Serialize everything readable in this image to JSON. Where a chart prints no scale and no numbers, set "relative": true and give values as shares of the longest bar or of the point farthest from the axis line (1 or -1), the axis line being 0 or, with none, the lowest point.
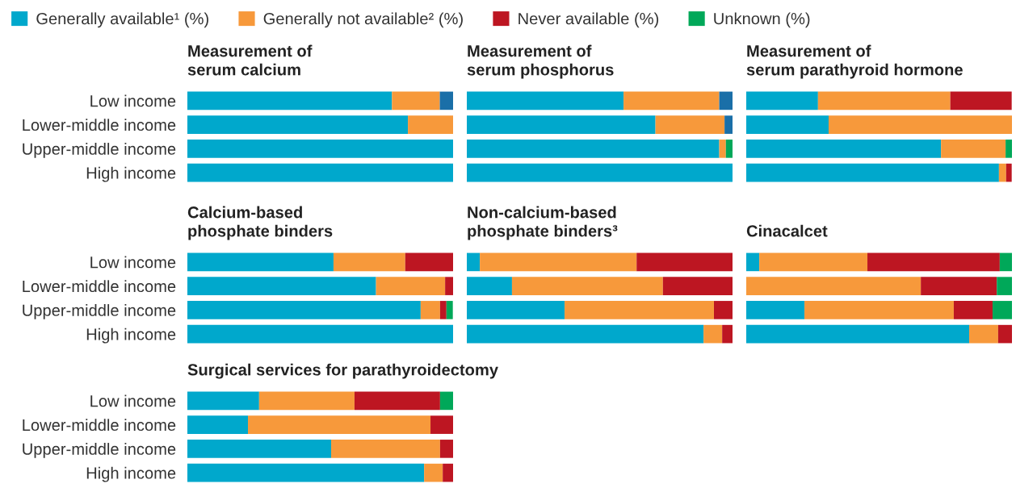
{
  "chart_data": [
    {
      "type": "bar",
      "orientation": "horizontal",
      "stacked": true,
      "relative": true,
      "legend": "top",
      "tick_labels": "y",
      "title": "Measurement of\nserum calcium",
      "categories": [
        "Low income",
        "Lower-middle income",
        "Upper-middle income",
        "High income"
      ],
      "series": [
        {
          "name": "Generally available¹ (%)",
          "color": "#00a8cc",
          "values": [
            0.77,
            0.83,
            1.0,
            1.0
          ]
        },
        {
          "name": "Generally not available² (%)",
          "color": "#f7993b",
          "values": [
            0.18,
            0.17,
            0,
            0
          ]
        },
        {
          "name": "Never available (%)",
          "color": "#bd1622",
          "values": [
            0,
            0,
            0,
            0
          ]
        },
        {
          "name": "Unknown (%)",
          "color": "#00a859",
          "values": [
            0,
            0,
            0,
            0
          ]
        },
        {
          "color": "#1a6fa8",
          "values": [
            0.05,
            0,
            0,
            0
          ]
        }
      ]
    },
    {
      "type": "bar",
      "orientation": "horizontal",
      "stacked": true,
      "relative": true,
      "tick_labels": false,
      "title": "Measurement of\nserum phosphorus",
      "categories": [
        null,
        null,
        null,
        null
      ],
      "series": [
        {
          "color": "#00a8cc",
          "values": [
            0.59,
            0.71,
            0.95,
            1.0
          ]
        },
        {
          "color": "#f7993b",
          "values": [
            0.36,
            0.26,
            0.025,
            0
          ]
        },
        {
          "color": "#bd1622",
          "values": [
            0,
            0,
            0,
            0
          ]
        },
        {
          "color": "#00a859",
          "values": [
            0,
            0,
            0.025,
            0
          ]
        },
        {
          "color": "#1a6fa8",
          "values": [
            0.05,
            0.03,
            0,
            0
          ]
        }
      ]
    },
    {
      "type": "bar",
      "orientation": "horizontal",
      "stacked": true,
      "relative": true,
      "tick_labels": false,
      "title": "Measurement of\nserum parathyroid hormone",
      "categories": [
        null,
        null,
        null,
        null
      ],
      "series": [
        {
          "color": "#00a8cc",
          "values": [
            0.27,
            0.31,
            0.733,
            0.951
          ]
        },
        {
          "color": "#f7993b",
          "values": [
            0.498,
            0.69,
            0.243,
            0.027
          ]
        },
        {
          "color": "#bd1622",
          "values": [
            0.231,
            0,
            0,
            0.021
          ]
        },
        {
          "color": "#00a859",
          "values": [
            0,
            0,
            0.024,
            0
          ]
        }
      ]
    },
    {
      "type": "bar",
      "orientation": "horizontal",
      "stacked": true,
      "relative": true,
      "tick_labels": "y",
      "title": "Calcium-based\nphosphate binders",
      "categories": [
        "Low income",
        "Lower-middle income",
        "Upper-middle income",
        "High income"
      ],
      "series": [
        {
          "color": "#00a8cc",
          "values": [
            0.55,
            0.71,
            0.878,
            1.0
          ]
        },
        {
          "color": "#f7993b",
          "values": [
            0.27,
            0.26,
            0.073,
            0
          ]
        },
        {
          "color": "#bd1622",
          "values": [
            0.18,
            0.03,
            0.024,
            0
          ]
        },
        {
          "color": "#00a859",
          "values": [
            0,
            0,
            0.024,
            0
          ]
        }
      ]
    },
    {
      "type": "bar",
      "orientation": "horizontal",
      "stacked": true,
      "relative": true,
      "tick_labels": false,
      "title": "Non-calcium-based\nphosphate binders³",
      "categories": [
        null,
        null,
        null,
        null
      ],
      "series": [
        {
          "color": "#00a8cc",
          "values": [
            0.049,
            0.17,
            0.368,
            0.891
          ]
        },
        {
          "color": "#f7993b",
          "values": [
            0.59,
            0.568,
            0.562,
            0.07
          ]
        },
        {
          "color": "#bd1622",
          "values": [
            0.361,
            0.262,
            0.07,
            0.039
          ]
        },
        {
          "color": "#00a859",
          "values": [
            0,
            0,
            0,
            0
          ]
        }
      ]
    },
    {
      "type": "bar",
      "orientation": "horizontal",
      "stacked": true,
      "relative": true,
      "tick_labels": false,
      "title": "Cinacalcet",
      "categories": [
        null,
        null,
        null,
        null
      ],
      "series": [
        {
          "color": "#00a8cc",
          "values": [
            0.049,
            0,
            0.219,
            0.839
          ]
        },
        {
          "color": "#f7993b",
          "values": [
            0.407,
            0.657,
            0.562,
            0.109
          ]
        },
        {
          "color": "#bd1622",
          "values": [
            0.498,
            0.286,
            0.146,
            0.052
          ]
        },
        {
          "color": "#00a859",
          "values": [
            0.046,
            0.057,
            0.073,
            0
          ]
        }
      ]
    },
    {
      "type": "bar",
      "orientation": "horizontal",
      "stacked": true,
      "relative": true,
      "tick_labels": "y",
      "title": "Surgical services for parathyroidectomy",
      "categories": [
        "Low income",
        "Lower-middle income",
        "Upper-middle income",
        "High income"
      ],
      "series": [
        {
          "color": "#00a8cc",
          "values": [
            0.27,
            0.228,
            0.541,
            0.891
          ]
        },
        {
          "color": "#f7993b",
          "values": [
            0.359,
            0.687,
            0.41,
            0.07
          ]
        },
        {
          "color": "#bd1622",
          "values": [
            0.322,
            0.085,
            0.049,
            0.039
          ]
        },
        {
          "color": "#00a859",
          "values": [
            0.049,
            0,
            0,
            0
          ]
        }
      ]
    }
  ]
}
